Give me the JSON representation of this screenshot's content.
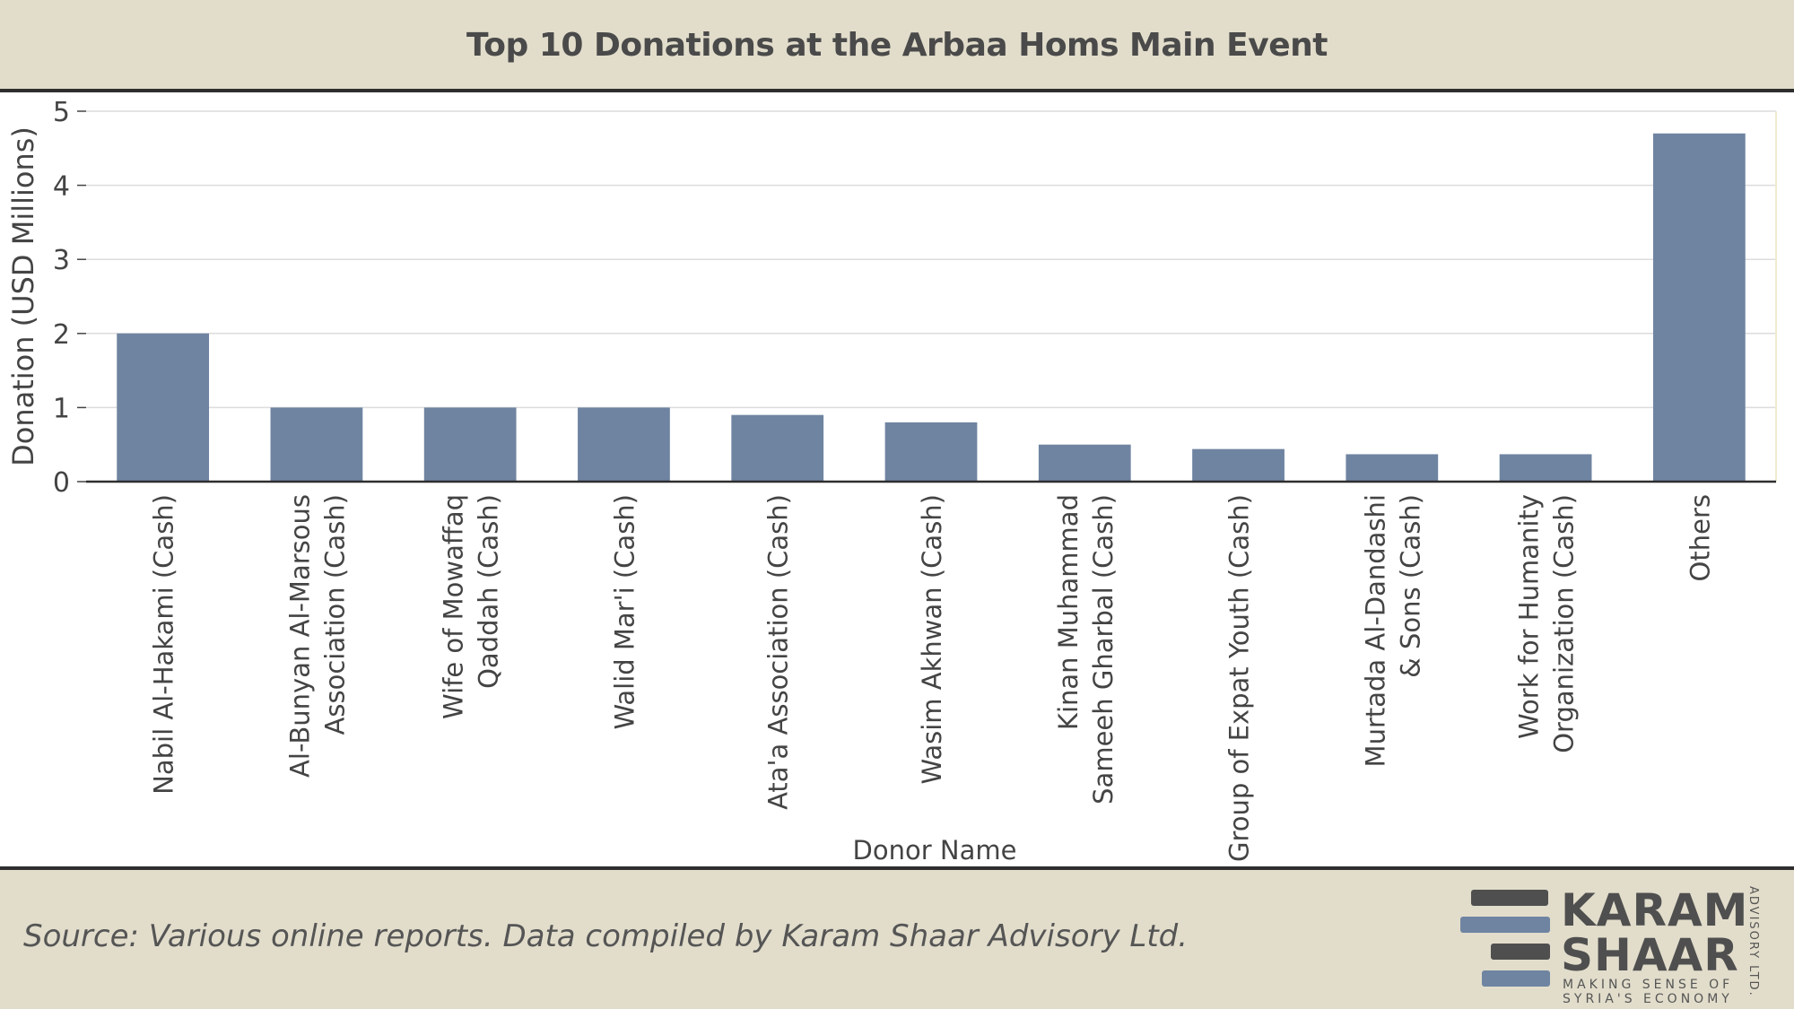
{
  "header": {
    "title": "Top 10 Donations at the Arbaa Homs Main Event"
  },
  "footer": {
    "source": "Source: Various online reports. Data compiled by Karam Shaar Advisory Ltd.",
    "logo": {
      "line1": "KARAM",
      "line2": "SHAAR",
      "tagline1": "MAKING SENSE OF",
      "tagline2": "SYRIA'S ECONOMY",
      "suffix": "ADVISORY LTD."
    }
  },
  "colors": {
    "bar": "#6f84a1",
    "band": "#e2ddcb",
    "rule": "#2e2e2e",
    "grid": "#dcdcdc"
  },
  "chart_data": {
    "type": "bar",
    "title": "Top 10 Donations at the Arbaa Homs Main Event",
    "xlabel": "Donor Name",
    "ylabel": "Donation (USD Millions)",
    "ylim": [
      0,
      5
    ],
    "yticks": [
      0,
      1,
      2,
      3,
      4,
      5
    ],
    "grid": true,
    "categories": [
      [
        "Nabil Al-Hakami (Cash)"
      ],
      [
        "Al-Bunyan Al-Marsous",
        "Association (Cash)"
      ],
      [
        "Wife of Mowaffaq",
        "Qaddah (Cash)"
      ],
      [
        "Walid Mar'i (Cash)"
      ],
      [
        "Ata'a Association (Cash)"
      ],
      [
        "Wasim Akhwan (Cash)"
      ],
      [
        "Kinan Muhammad",
        "Sameeh Gharbal (Cash)"
      ],
      [
        "Group of Expat Youth (Cash)"
      ],
      [
        "Murtada Al-Dandashi",
        "& Sons (Cash)"
      ],
      [
        "Work for Humanity",
        "Organization (Cash)"
      ],
      [
        "Others"
      ]
    ],
    "values": [
      2.0,
      1.0,
      1.0,
      1.0,
      0.9,
      0.8,
      0.5,
      0.44,
      0.37,
      0.37,
      4.7
    ]
  }
}
